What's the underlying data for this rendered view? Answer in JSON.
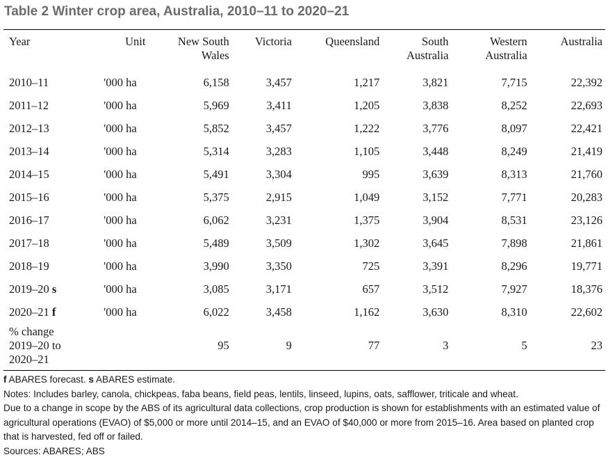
{
  "title": "Table 2 Winter crop area, Australia, 2010–11 to 2020–21",
  "columns": {
    "year": "Year",
    "unit": "Unit",
    "nsw_line1": "New South",
    "nsw_line2": "Wales",
    "vic": "Victoria",
    "qld": "Queensland",
    "sa_line1": "South",
    "sa_line2": "Australia",
    "wa_line1": "Western",
    "wa_line2": "Australia",
    "aus": "Australia"
  },
  "rows": [
    {
      "year": "2010–11",
      "flag": "",
      "unit": "'000 ha",
      "nsw": "6,158",
      "vic": "3,457",
      "qld": "1,217",
      "sa": "3,821",
      "wa": "7,715",
      "aus": "22,392"
    },
    {
      "year": "2011–12",
      "flag": "",
      "unit": "'000 ha",
      "nsw": "5,969",
      "vic": "3,411",
      "qld": "1,205",
      "sa": "3,838",
      "wa": "8,252",
      "aus": "22,693"
    },
    {
      "year": "2012–13",
      "flag": "",
      "unit": "'000 ha",
      "nsw": "5,852",
      "vic": "3,457",
      "qld": "1,222",
      "sa": "3,776",
      "wa": "8,097",
      "aus": "22,421"
    },
    {
      "year": "2013–14",
      "flag": "",
      "unit": "'000 ha",
      "nsw": "5,314",
      "vic": "3,283",
      "qld": "1,105",
      "sa": "3,448",
      "wa": "8,249",
      "aus": "21,419"
    },
    {
      "year": "2014–15",
      "flag": "",
      "unit": "'000 ha",
      "nsw": "5,491",
      "vic": "3,304",
      "qld": "995",
      "sa": "3,639",
      "wa": "8,313",
      "aus": "21,760"
    },
    {
      "year": "2015–16",
      "flag": "",
      "unit": "'000 ha",
      "nsw": "5,375",
      "vic": "2,915",
      "qld": "1,049",
      "sa": "3,152",
      "wa": "7,771",
      "aus": "20,283"
    },
    {
      "year": "2016–17",
      "flag": "",
      "unit": "'000 ha",
      "nsw": "6,062",
      "vic": "3,231",
      "qld": "1,375",
      "sa": "3,904",
      "wa": "8,531",
      "aus": "23,126"
    },
    {
      "year": "2017–18",
      "flag": "",
      "unit": "'000 ha",
      "nsw": "5,489",
      "vic": "3,509",
      "qld": "1,302",
      "sa": "3,645",
      "wa": "7,898",
      "aus": "21,861"
    },
    {
      "year": "2018–19",
      "flag": "",
      "unit": "'000 ha",
      "nsw": "3,990",
      "vic": "3,350",
      "qld": "725",
      "sa": "3,391",
      "wa": "8,296",
      "aus": "19,771"
    },
    {
      "year": "2019–20",
      "flag": "s",
      "unit": "'000 ha",
      "nsw": "3,085",
      "vic": "3,171",
      "qld": "657",
      "sa": "3,512",
      "wa": "7,927",
      "aus": "18,376"
    },
    {
      "year": "2020–21",
      "flag": "f",
      "unit": "'000 ha",
      "nsw": "6,022",
      "vic": "3,458",
      "qld": "1,162",
      "sa": "3,630",
      "wa": "8,310",
      "aus": "22,602"
    }
  ],
  "change": {
    "label_line1": "% change",
    "label_line2": "2019–20 to",
    "label_line3": "2020–21",
    "nsw": "95",
    "vic": "9",
    "qld": "77",
    "sa": "3",
    "wa": "5",
    "aus": "23"
  },
  "notes": {
    "flag_f": "f",
    "flag_f_text": " ABARES forecast. ",
    "flag_s": "s",
    "flag_s_text": " ABARES estimate.",
    "line1": "Notes: Includes barley, canola, chickpeas, faba beans, field peas, lentils, linseed, lupins, oats, safflower, triticale and wheat.",
    "line2": "Due to a change in scope by the ABS of its agricultural data collections, crop production is shown for establishments with an estimated value of agricultural operations (EVAO) of $5,000 or more until 2014–15, and an EVAO of $40,000 or more from 2015–16. Area based on planted crop that is harvested, fed off or failed.",
    "sources": "Sources: ABARES; ABS"
  }
}
